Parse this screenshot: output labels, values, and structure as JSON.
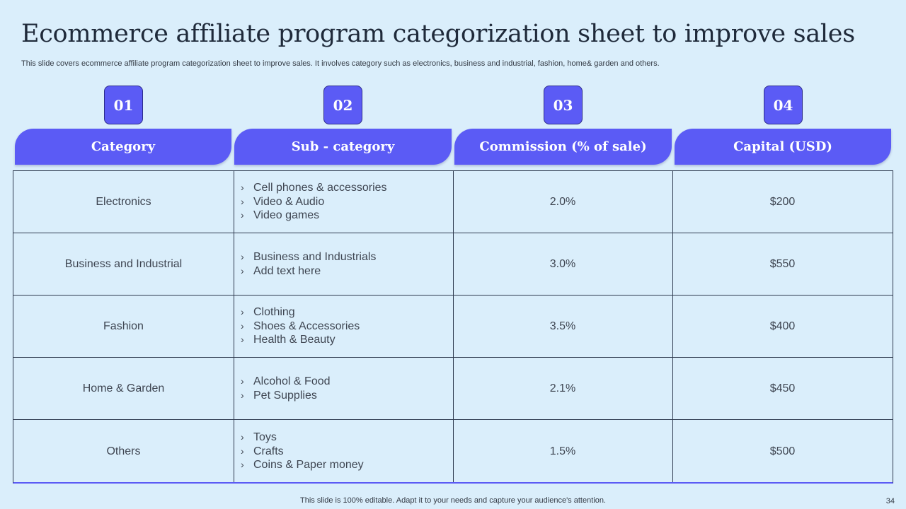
{
  "slide": {
    "title": "Ecommerce affiliate program categorization sheet to improve sales",
    "subtitle": "This slide covers ecommerce affiliate program categorization sheet to improve sales. It involves category  such as electronics, business and industrial, fashion, home& garden and others.",
    "footer": "This slide is 100% editable. Adapt it to your needs and capture your audience's attention.",
    "page_number": "34"
  },
  "columns": [
    {
      "number": "01",
      "label": "Category"
    },
    {
      "number": "02",
      "label": "Sub - category"
    },
    {
      "number": "03",
      "label": "Commission (% of sale)"
    },
    {
      "number": "04",
      "label": "Capital (USD)"
    }
  ],
  "rows": [
    {
      "category": "Electronics",
      "subcategories": [
        "Cell phones & accessories",
        "Video & Audio",
        "Video games"
      ],
      "commission": "2.0%",
      "capital": "$200"
    },
    {
      "category": "Business and Industrial",
      "subcategories": [
        "Business and Industrials",
        "Add text here"
      ],
      "commission": "3.0%",
      "capital": "$550"
    },
    {
      "category": "Fashion",
      "subcategories": [
        "Clothing",
        "Shoes & Accessories",
        "Health & Beauty"
      ],
      "commission": "3.5%",
      "capital": "$400"
    },
    {
      "category": "Home & Garden",
      "subcategories": [
        "Alcohol & Food",
        "Pet Supplies"
      ],
      "commission": "2.1%",
      "capital": "$450"
    },
    {
      "category": "Others",
      "subcategories": [
        "Toys",
        "Crafts",
        "Coins & Paper money"
      ],
      "commission": "1.5%",
      "capital": "$500"
    }
  ],
  "colors": {
    "background": "#daeefb",
    "accent": "#5b5bf5",
    "grid": "#2e3a4f"
  },
  "icons": {
    "list_bullet": "chevron-right-icon"
  }
}
